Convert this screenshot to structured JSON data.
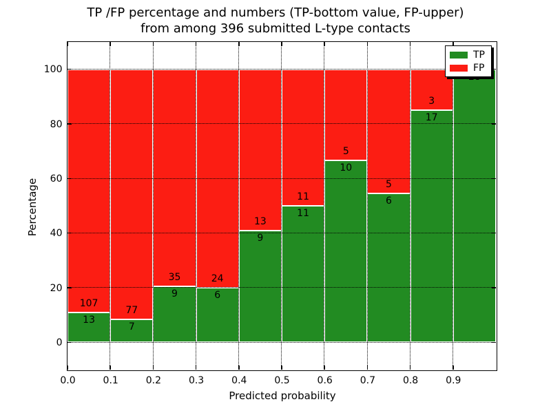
{
  "title": {
    "line1": "TP /FP percentage and numbers (TP-bottom value, FP-upper)",
    "line2": "from among 396 submitted L-type contacts"
  },
  "x_axis": {
    "label": "Predicted probability",
    "lim": [
      0.0,
      1.0
    ],
    "ticks": [
      {
        "v": 0.0,
        "label": "0.0"
      },
      {
        "v": 0.1,
        "label": "0.1"
      },
      {
        "v": 0.2,
        "label": "0.2"
      },
      {
        "v": 0.3,
        "label": "0.3"
      },
      {
        "v": 0.4,
        "label": "0.4"
      },
      {
        "v": 0.5,
        "label": "0.5"
      },
      {
        "v": 0.6,
        "label": "0.6"
      },
      {
        "v": 0.7,
        "label": "0.7"
      },
      {
        "v": 0.8,
        "label": "0.8"
      },
      {
        "v": 0.9,
        "label": "0.9"
      }
    ]
  },
  "y_axis": {
    "label": "Percentage",
    "lim": [
      -10,
      110
    ],
    "ticks": [
      {
        "v": 0,
        "label": "0"
      },
      {
        "v": 20,
        "label": "20"
      },
      {
        "v": 40,
        "label": "40"
      },
      {
        "v": 60,
        "label": "60"
      },
      {
        "v": 80,
        "label": "80"
      },
      {
        "v": 100,
        "label": "100"
      }
    ]
  },
  "legend": {
    "items": [
      {
        "label": "TP",
        "color": "#228b22"
      },
      {
        "label": "FP",
        "color": "#fc1d13"
      }
    ],
    "position": "upper right",
    "shadow": true
  },
  "colors": {
    "tp": "#228b22",
    "fp": "#fc1d13",
    "bar_edge": "#ffffff",
    "grid": "#000000",
    "background": "#ffffff"
  },
  "chart_data": {
    "type": "bar",
    "stacked": true,
    "normalized_to_percent": true,
    "grid": "dotted, drawn over bars",
    "title": "TP /FP percentage and numbers (TP-bottom value, FP-upper) from among 396 submitted L-type contacts",
    "xlabel": "Predicted probability",
    "ylabel": "Percentage",
    "xlim": [
      0.0,
      1.0
    ],
    "ylim": [
      -10,
      110
    ],
    "bin_width": 0.1,
    "bin_starts": [
      0.0,
      0.1,
      0.2,
      0.3,
      0.4,
      0.5,
      0.6,
      0.7,
      0.8,
      0.9
    ],
    "categories": [
      "0.0-0.1",
      "0.1-0.2",
      "0.2-0.3",
      "0.3-0.4",
      "0.4-0.5",
      "0.5-0.6",
      "0.6-0.7",
      "0.7-0.8",
      "0.8-0.9",
      "0.9-1.0"
    ],
    "series": [
      {
        "name": "TP",
        "counts": [
          13,
          7,
          9,
          6,
          9,
          11,
          10,
          6,
          17,
          28
        ]
      },
      {
        "name": "FP",
        "counts": [
          107,
          77,
          35,
          24,
          13,
          11,
          5,
          5,
          3,
          0
        ]
      }
    ],
    "tp_percent": [
      10.83,
      8.33,
      20.45,
      20.0,
      40.91,
      50.0,
      66.67,
      54.55,
      85.0,
      100.0
    ],
    "total_contacts": 396
  }
}
